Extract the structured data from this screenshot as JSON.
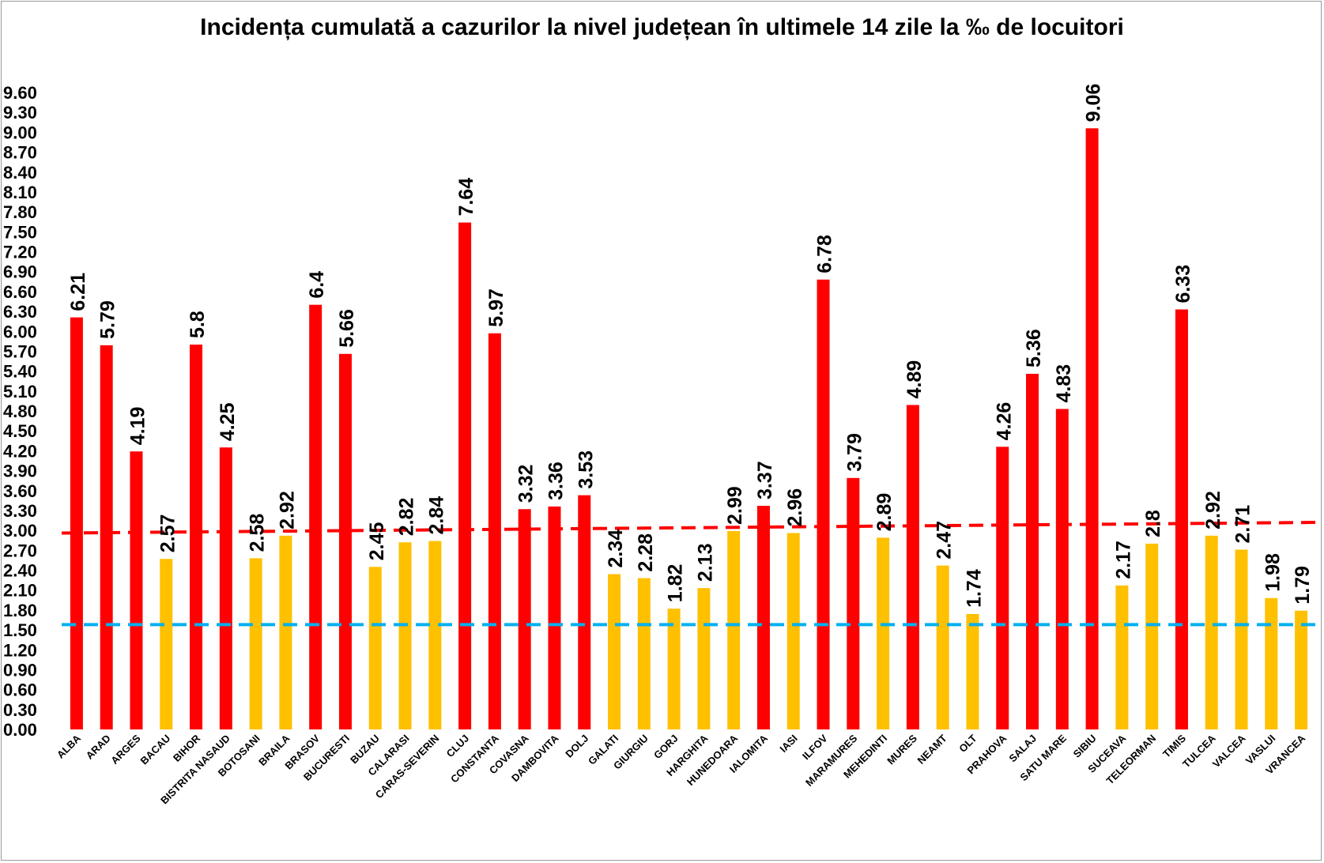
{
  "chart_data": {
    "type": "bar",
    "title": "Incidența cumulată a cazurilor la nivel județean în ultimele 14 zile la ‰ de locuitori",
    "xlabel": "",
    "ylabel": "",
    "ylim": [
      0,
      9.6
    ],
    "yticks": [
      "0.00",
      "0.30",
      "0.60",
      "0.90",
      "1.20",
      "1.50",
      "1.80",
      "2.10",
      "2.40",
      "2.70",
      "3.00",
      "3.30",
      "3.60",
      "3.90",
      "4.20",
      "4.50",
      "4.80",
      "5.10",
      "5.40",
      "5.70",
      "6.00",
      "6.30",
      "6.60",
      "6.90",
      "7.20",
      "7.50",
      "7.80",
      "8.10",
      "8.40",
      "8.70",
      "9.00",
      "9.30",
      "9.60"
    ],
    "grid": false,
    "categories": [
      "ALBA",
      "ARAD",
      "ARGES",
      "BACAU",
      "BIHOR",
      "BISTRITA NASAUD",
      "BOTOSANI",
      "BRAILA",
      "BRASOV",
      "BUCURESTI",
      "BUZAU",
      "CALARASI",
      "CARAS-SEVERIN",
      "CLUJ",
      "CONSTANTA",
      "COVASNA",
      "DAMBOVITA",
      "DOLJ",
      "GALATI",
      "GIURGIU",
      "GORJ",
      "HARGHITA",
      "HUNEDOARA",
      "IALOMITA",
      "IASI",
      "ILFOV",
      "MARAMURES",
      "MEHEDINTI",
      "MURES",
      "NEAMT",
      "OLT",
      "PRAHOVA",
      "SALAJ",
      "SATU MARE",
      "SIBIU",
      "SUCEAVA",
      "TELEORMAN",
      "TIMIS",
      "TULCEA",
      "VALCEA",
      "VASLUI",
      "VRANCEA"
    ],
    "values": [
      6.21,
      5.79,
      4.19,
      2.57,
      5.8,
      4.25,
      2.58,
      2.92,
      6.4,
      5.66,
      2.45,
      2.82,
      2.84,
      7.64,
      5.97,
      3.32,
      3.36,
      3.53,
      2.34,
      2.28,
      1.82,
      2.13,
      2.99,
      3.37,
      2.96,
      6.78,
      3.79,
      2.89,
      4.89,
      2.47,
      1.74,
      4.26,
      5.36,
      4.83,
      9.06,
      2.17,
      2.8,
      6.33,
      2.92,
      2.71,
      1.98,
      1.79
    ],
    "data_labels": [
      "6.21",
      "5.79",
      "4.19",
      "2.57",
      "5.8",
      "4.25",
      "2.58",
      "2.92",
      "6.4",
      "5.66",
      "2.45",
      "2.82",
      "2.84",
      "7.64",
      "5.97",
      "3.32",
      "3.36",
      "3.53",
      "2.34",
      "2.28",
      "1.82",
      "2.13",
      "2.99",
      "3.37",
      "2.96",
      "6.78",
      "3.79",
      "2.89",
      "4.89",
      "2.47",
      "1.74",
      "4.26",
      "5.36",
      "4.83",
      "9.06",
      "2.17",
      "2.8",
      "6.33",
      "2.92",
      "2.71",
      "1.98",
      "1.79"
    ],
    "bar_colors": [
      "#ff0000",
      "#ff0000",
      "#ff0000",
      "#ffc000",
      "#ff0000",
      "#ff0000",
      "#ffc000",
      "#ffc000",
      "#ff0000",
      "#ff0000",
      "#ffc000",
      "#ffc000",
      "#ffc000",
      "#ff0000",
      "#ff0000",
      "#ff0000",
      "#ff0000",
      "#ff0000",
      "#ffc000",
      "#ffc000",
      "#ffc000",
      "#ffc000",
      "#ffc000",
      "#ff0000",
      "#ffc000",
      "#ff0000",
      "#ff0000",
      "#ffc000",
      "#ff0000",
      "#ffc000",
      "#ffc000",
      "#ff0000",
      "#ff0000",
      "#ff0000",
      "#ff0000",
      "#ffc000",
      "#ffc000",
      "#ff0000",
      "#ffc000",
      "#ffc000",
      "#ffc000",
      "#ffc000"
    ],
    "reference_lines": [
      {
        "style": "dashed",
        "color": "#ff0000",
        "y_start": 2.96,
        "y_end": 3.12
      },
      {
        "style": "dashed",
        "color": "#00b0f0",
        "y_start": 1.58,
        "y_end": 1.58
      }
    ]
  }
}
